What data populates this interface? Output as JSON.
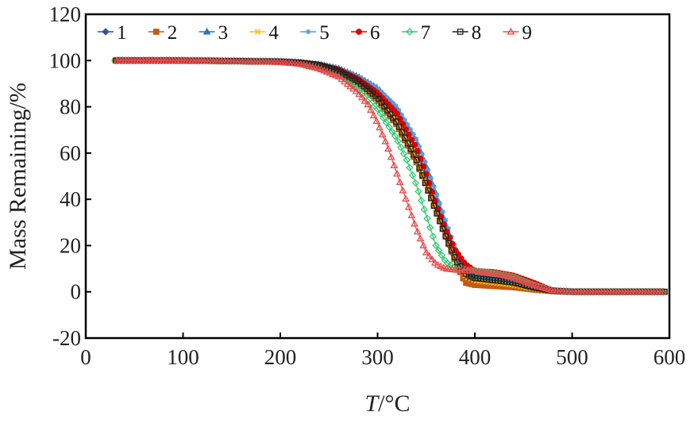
{
  "chart_data": {
    "type": "line",
    "title": "",
    "xlabel_italic": "T",
    "xlabel_rest": "/°C",
    "ylabel": "Mass Remaining/%",
    "xlim": [
      0,
      600
    ],
    "ylim": [
      -20,
      120
    ],
    "xticks": [
      0,
      100,
      200,
      300,
      400,
      500,
      600
    ],
    "yticks": [
      -20,
      0,
      20,
      40,
      60,
      80,
      100,
      120
    ],
    "grid": false,
    "legend_position": "top",
    "series": [
      {
        "name": "1",
        "color": "#2f5597",
        "marker": "diamond",
        "x": [
          30,
          100,
          200,
          220,
          240,
          260,
          280,
          300,
          320,
          340,
          350,
          360,
          370,
          380,
          390,
          400,
          420,
          440,
          460,
          480,
          500,
          550,
          595
        ],
        "y": [
          100,
          100,
          99.5,
          99,
          98,
          96,
          92,
          86,
          76,
          60,
          49,
          37,
          25,
          14,
          7,
          5,
          4,
          3,
          1.5,
          0.5,
          0,
          0,
          0
        ]
      },
      {
        "name": "2",
        "color": "#c55a11",
        "marker": "square",
        "x": [
          30,
          100,
          200,
          220,
          240,
          260,
          280,
          300,
          320,
          340,
          350,
          360,
          370,
          380,
          390,
          400,
          420,
          440,
          460,
          480,
          500,
          550,
          595
        ],
        "y": [
          100,
          100,
          99.5,
          99,
          97.5,
          95,
          90,
          83,
          72,
          56,
          46,
          35,
          24,
          13,
          4,
          3,
          2.5,
          2,
          1,
          0.3,
          0,
          0,
          0
        ]
      },
      {
        "name": "3",
        "color": "#2e75b6",
        "marker": "triangle",
        "x": [
          30,
          100,
          200,
          220,
          240,
          260,
          280,
          300,
          320,
          340,
          350,
          360,
          370,
          380,
          390,
          400,
          420,
          440,
          460,
          480,
          500,
          550,
          595
        ],
        "y": [
          100,
          100,
          99.6,
          99.2,
          98.3,
          96.5,
          93,
          88,
          79,
          65,
          54,
          42,
          29,
          17,
          9,
          6,
          5,
          4,
          2,
          0.5,
          0,
          0,
          0
        ]
      },
      {
        "name": "4",
        "color": "#ffc000",
        "marker": "x",
        "x": [
          30,
          100,
          200,
          220,
          240,
          260,
          280,
          300,
          320,
          340,
          350,
          360,
          370,
          380,
          390,
          400,
          420,
          440,
          460,
          480,
          500,
          550,
          595
        ],
        "y": [
          100,
          100,
          99.5,
          99,
          98,
          95.5,
          91,
          84,
          74,
          58,
          47,
          36,
          25,
          14,
          7,
          5,
          4,
          3,
          1.5,
          0.4,
          0,
          0,
          0
        ]
      },
      {
        "name": "5",
        "color": "#5b9bd5",
        "marker": "star",
        "x": [
          30,
          100,
          200,
          220,
          240,
          260,
          280,
          300,
          320,
          340,
          350,
          360,
          370,
          380,
          390,
          400,
          420,
          440,
          460,
          480,
          500,
          550,
          595
        ],
        "y": [
          100,
          100,
          99.6,
          99.2,
          98.4,
          96.5,
          93,
          88,
          80,
          66,
          55,
          43,
          31,
          19,
          10,
          7,
          6,
          5,
          2,
          0.5,
          0,
          0,
          0
        ]
      },
      {
        "name": "6",
        "color": "#e00000",
        "marker": "circle",
        "x": [
          30,
          100,
          200,
          220,
          240,
          260,
          280,
          300,
          320,
          340,
          350,
          360,
          370,
          380,
          390,
          400,
          420,
          440,
          460,
          480,
          500,
          550,
          595
        ],
        "y": [
          100,
          100,
          99.6,
          99.2,
          98.2,
          96,
          92,
          86,
          77,
          62,
          51,
          38,
          27,
          18,
          12,
          9,
          8.5,
          7,
          4,
          0.5,
          0,
          0,
          0
        ]
      },
      {
        "name": "7",
        "color": "#2ecc71",
        "marker": "diamond-open",
        "x": [
          30,
          100,
          200,
          220,
          240,
          260,
          280,
          300,
          320,
          330,
          340,
          350,
          360,
          370,
          380,
          390,
          400,
          420,
          440,
          460,
          480,
          500,
          550,
          595
        ],
        "y": [
          100,
          100,
          99.4,
          98.8,
          97,
          94,
          88,
          79,
          66,
          57,
          46,
          33,
          20,
          13,
          10,
          9.5,
          9,
          8,
          6.5,
          3,
          0.5,
          0,
          0,
          0
        ]
      },
      {
        "name": "8",
        "color": "#222222",
        "marker": "square-open",
        "x": [
          30,
          100,
          200,
          220,
          240,
          260,
          280,
          300,
          320,
          340,
          350,
          360,
          370,
          380,
          390,
          400,
          420,
          440,
          460,
          480,
          500,
          550,
          595
        ],
        "y": [
          100,
          100,
          99.5,
          99,
          98,
          95.5,
          91,
          84,
          73,
          57,
          46,
          35,
          24,
          14,
          8,
          6,
          5,
          4,
          2,
          0.4,
          0,
          0,
          0
        ]
      },
      {
        "name": "9",
        "color": "#e84a4a",
        "marker": "triangle-open",
        "x": [
          30,
          100,
          200,
          220,
          240,
          260,
          280,
          290,
          300,
          310,
          320,
          330,
          340,
          350,
          360,
          370,
          380,
          400,
          420,
          440,
          460,
          480,
          500,
          550,
          595
        ],
        "y": [
          100,
          100,
          99.3,
          98.5,
          96.5,
          93,
          86,
          81,
          73,
          63,
          51,
          39,
          27,
          17,
          12,
          10,
          9.5,
          9,
          8,
          6,
          3,
          0.5,
          0,
          0,
          0
        ]
      }
    ]
  }
}
